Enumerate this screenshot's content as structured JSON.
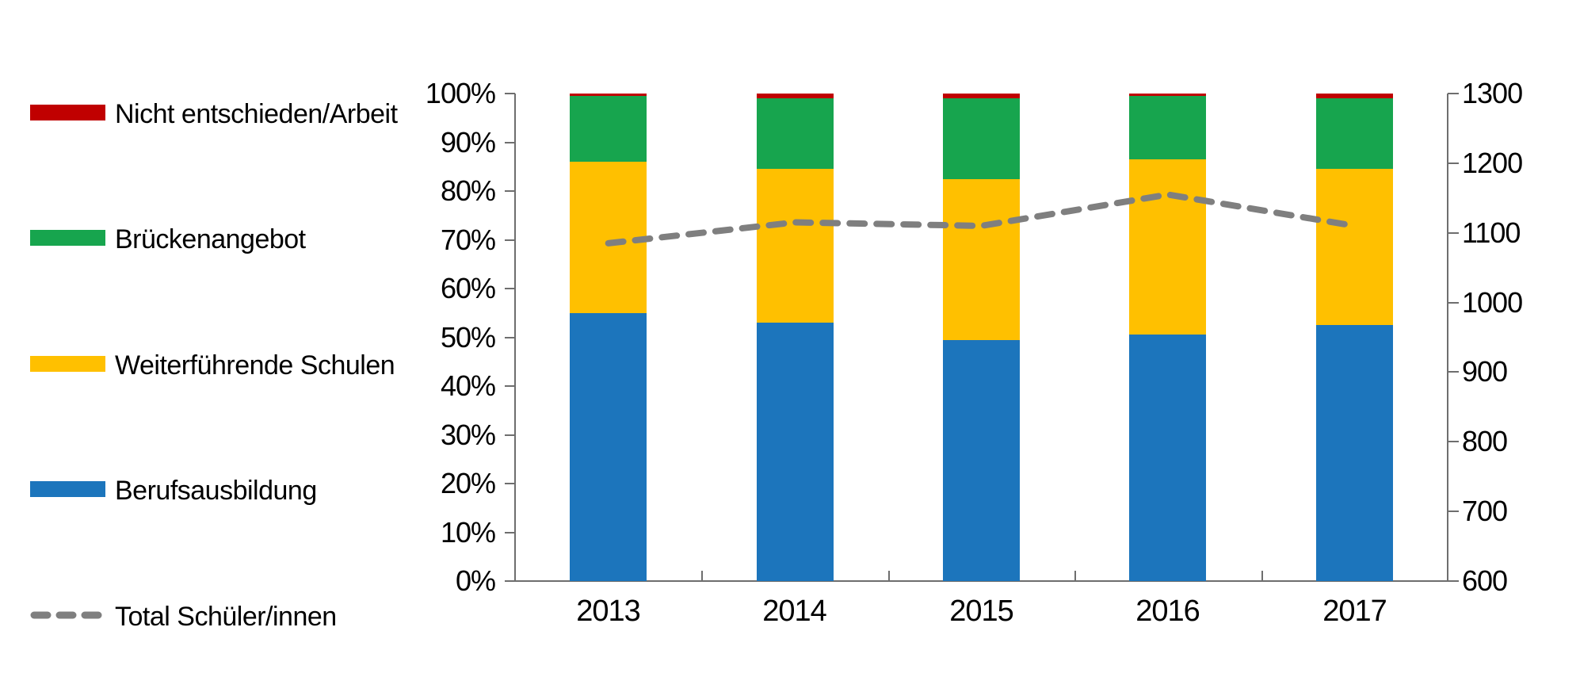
{
  "legend": {
    "items": [
      {
        "label": "Nicht entschieden/Arbeit",
        "color": "#C00000",
        "swatch": "rect"
      },
      {
        "label": "Brückenangebot",
        "color": "#17A54E",
        "swatch": "rect"
      },
      {
        "label": "Weiterführende Schulen",
        "color": "#FFC000",
        "swatch": "rect"
      },
      {
        "label": "Berufsausbildung",
        "color": "#1C75BC",
        "swatch": "rect"
      },
      {
        "label": "Total Schüler/innen",
        "color": "#7F7F7F",
        "swatch": "dash"
      }
    ]
  },
  "axes": {
    "left": {
      "tick_labels": [
        "100%",
        "90%",
        "80%",
        "70%",
        "60%",
        "50%",
        "40%",
        "30%",
        "20%",
        "10%",
        "0%"
      ]
    },
    "right": {
      "tick_labels": [
        "1300",
        "1200",
        "1100",
        "1000",
        "900",
        "800",
        "700",
        "600"
      ]
    },
    "x": {
      "tick_labels": [
        "2013",
        "2014",
        "2015",
        "2016",
        "2017"
      ]
    }
  },
  "chart_data": {
    "type": "bar",
    "subtype": "stacked-100pct-with-line",
    "categories": [
      "2013",
      "2014",
      "2015",
      "2016",
      "2017"
    ],
    "series": [
      {
        "name": "Berufsausbildung",
        "color": "#1C75BC",
        "axis": "left",
        "values": [
          55.0,
          53.0,
          49.5,
          50.5,
          52.5
        ]
      },
      {
        "name": "Weiterführende Schulen",
        "color": "#FFC000",
        "axis": "left",
        "values": [
          31.0,
          31.5,
          33.0,
          36.0,
          32.0
        ]
      },
      {
        "name": "Brückenangebot",
        "color": "#17A54E",
        "axis": "left",
        "values": [
          13.5,
          14.5,
          16.5,
          13.0,
          14.5
        ]
      },
      {
        "name": "Nicht entschieden/Arbeit",
        "color": "#C00000",
        "axis": "left",
        "values": [
          0.5,
          1.0,
          1.0,
          0.5,
          1.0
        ]
      }
    ],
    "line_series": [
      {
        "name": "Total Schüler/innen",
        "color": "#7F7F7F",
        "style": "dashed",
        "axis": "right",
        "values": [
          1085,
          1115,
          1110,
          1155,
          1110
        ]
      }
    ],
    "left_axis": {
      "min": 0,
      "max": 100,
      "step": 10,
      "format": "percent"
    },
    "right_axis": {
      "min": 600,
      "max": 1300,
      "step": 100,
      "format": "number"
    },
    "title": "",
    "xlabel": "",
    "ylabel": "",
    "grid": false,
    "legend_position": "left"
  }
}
